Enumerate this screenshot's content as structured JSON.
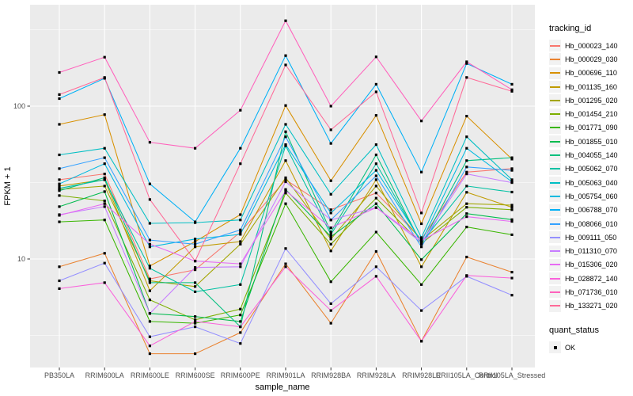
{
  "figure_title": "",
  "chart_data": {
    "type": "line",
    "title": "",
    "xlabel": "sample_name",
    "ylabel": "FPKM + 1",
    "y_scale": "log10",
    "ylim": [
      2.2,
      400
    ],
    "grid": true,
    "legend_position": "right",
    "legend_title": "tracking_id",
    "quant_legend": {
      "title": "quant_status",
      "items": [
        "OK"
      ]
    },
    "marker": {
      "shape": "square",
      "color": "#000000",
      "size": 3.2
    },
    "y_ticks": [
      {
        "label": "100",
        "value": 100
      },
      {
        "label": "10",
        "value": 10
      }
    ],
    "minor_gridlines": [
      316.2,
      31.62,
      3.162
    ],
    "x_categories": [
      "PB350LA",
      "RRIM600LA",
      "RRIM600LE",
      "RRIM600SE",
      "RRIM600PE",
      "RRIM901LA",
      "RRIM928BA",
      "RRIM928LA",
      "RRIM928LE",
      "RRII105LA_Control",
      "RRII105LA_Stressed"
    ],
    "series": [
      {
        "name": "Hb_000023_140",
        "color": "#F8766D",
        "values": [
          33,
          36,
          7.4,
          8.5,
          15,
          33,
          21,
          27,
          13.5,
          37,
          39
        ]
      },
      {
        "name": "Hb_000029_030",
        "color": "#EA8331",
        "values": [
          8.9,
          10.9,
          2.4,
          2.4,
          3.3,
          9.3,
          3.8,
          11.2,
          2.9,
          10.3,
          8.2
        ]
      },
      {
        "name": "Hb_000696_110",
        "color": "#D89000",
        "values": [
          76,
          88,
          9.0,
          13.0,
          19.5,
          101,
          32.5,
          87,
          17.0,
          86,
          45
        ]
      },
      {
        "name": "Hb_001135_160",
        "color": "#C09B00",
        "values": [
          30,
          33,
          6.2,
          12.0,
          13.0,
          44,
          11.3,
          33,
          8.9,
          27.3,
          21.8
        ]
      },
      {
        "name": "Hb_001295_020",
        "color": "#A3A500",
        "values": [
          28.5,
          30,
          7.2,
          6.6,
          12.5,
          34,
          13.5,
          30,
          13.2,
          23,
          22.5
        ]
      },
      {
        "name": "Hb_001454_210",
        "color": "#7CAE00",
        "values": [
          26,
          24,
          5.4,
          4.0,
          4.7,
          27,
          12.5,
          25,
          12.6,
          21.8,
          21
        ]
      },
      {
        "name": "Hb_001771_090",
        "color": "#39B600",
        "values": [
          17.5,
          18,
          3.9,
          3.8,
          4.3,
          23,
          7.1,
          15,
          6.8,
          16.2,
          14.4
        ]
      },
      {
        "name": "Hb_001855_010",
        "color": "#00BB4E",
        "values": [
          22,
          27.6,
          4.4,
          4.2,
          3.9,
          28.5,
          14,
          23,
          9.9,
          19.8,
          18.1
        ]
      },
      {
        "name": "Hb_004055_140",
        "color": "#00BF7D",
        "values": [
          28,
          34,
          7.0,
          7.0,
          3.6,
          68,
          15,
          48,
          12.5,
          44,
          46
        ]
      },
      {
        "name": "Hb_005062_070",
        "color": "#00C1A3",
        "values": [
          29,
          33,
          8.7,
          6.1,
          6.8,
          55,
          14.5,
          42,
          12.8,
          30,
          27.4
        ]
      },
      {
        "name": "Hb_005063_040",
        "color": "#00BFC4",
        "values": [
          48,
          53,
          17.1,
          17.3,
          18,
          76,
          26.5,
          56,
          13.8,
          63,
          33
        ]
      },
      {
        "name": "Hb_005754_060",
        "color": "#00BAE0",
        "values": [
          31,
          42,
          12.0,
          13.5,
          14.5,
          56,
          20,
          38,
          13.0,
          53,
          32
        ]
      },
      {
        "name": "Hb_006788_070",
        "color": "#00B0F6",
        "values": [
          112,
          152,
          31,
          17.5,
          53,
          214,
          57,
          139,
          37,
          190,
          139
        ]
      },
      {
        "name": "Hb_008066_010",
        "color": "#35A2FF",
        "values": [
          39,
          46,
          13.3,
          12.5,
          15.5,
          63,
          18,
          35,
          12.0,
          40,
          38
        ]
      },
      {
        "name": "Hb_009111_050",
        "color": "#9590FF",
        "values": [
          7.2,
          9.4,
          3.1,
          3.6,
          2.8,
          11.7,
          5.1,
          8.9,
          4.6,
          7.7,
          5.8
        ]
      },
      {
        "name": "Hb_011310_070",
        "color": "#C77CFF",
        "values": [
          19.5,
          22,
          4.4,
          8.8,
          8.9,
          32,
          18,
          21.7,
          12.8,
          36,
          31.6
        ]
      },
      {
        "name": "Hb_015306_020",
        "color": "#E76BF3",
        "values": [
          19.3,
          23,
          12.5,
          9.7,
          9.3,
          28,
          16,
          21.7,
          13.2,
          18.9,
          17.6
        ]
      },
      {
        "name": "Hb_028872_140",
        "color": "#FA62DB",
        "values": [
          6.4,
          7.0,
          2.7,
          3.9,
          3.6,
          8.9,
          4.6,
          7.7,
          2.9,
          7.8,
          7.5
        ]
      },
      {
        "name": "Hb_071736_010",
        "color": "#FF62BC",
        "values": [
          166,
          209,
          58,
          53,
          94,
          362,
          100,
          210,
          80,
          195,
          128
        ]
      },
      {
        "name": "Hb_133271_020",
        "color": "#FF6A98",
        "values": [
          119,
          154,
          24.5,
          9.7,
          42,
          186,
          70,
          124,
          20,
          154,
          125
        ]
      }
    ],
    "style": {
      "panel_bg": "#EBEBEB",
      "grid_color": "#FFFFFF",
      "tick_text_color": "#4D4D4D",
      "axis_title_color": "#000000",
      "legend_key_bg": "#F2F2F2"
    }
  }
}
